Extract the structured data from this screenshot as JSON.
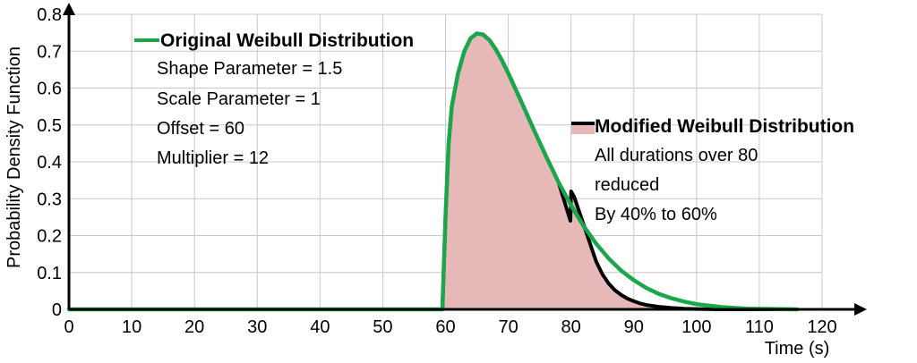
{
  "chart_data": {
    "type": "area",
    "xlabel": "Time (s)",
    "ylabel": "Probability Density Function",
    "xlim": [
      0,
      120
    ],
    "ylim": [
      0,
      0.8
    ],
    "x_ticks": [
      "0",
      "10",
      "20",
      "30",
      "40",
      "50",
      "60",
      "70",
      "80",
      "90",
      "100",
      "110",
      "120"
    ],
    "y_ticks": [
      "0",
      "0.1",
      "0.2",
      "0.3",
      "0.4",
      "0.5",
      "0.6",
      "0.7",
      "0.8"
    ],
    "grid": true,
    "series": [
      {
        "name": "Original Weibull Distribution",
        "color": "#1aa64a",
        "style": "line",
        "x": [
          0,
          59.5,
          60,
          60.5,
          61,
          62,
          63,
          64,
          65,
          66,
          67,
          68,
          69,
          70,
          72,
          74,
          76,
          78,
          80,
          82,
          84,
          86,
          88,
          90,
          92,
          94,
          96,
          98,
          100,
          104,
          108,
          112,
          116
        ],
        "y": [
          0,
          0,
          0.25,
          0.45,
          0.55,
          0.64,
          0.7,
          0.735,
          0.748,
          0.745,
          0.73,
          0.705,
          0.675,
          0.64,
          0.566,
          0.49,
          0.416,
          0.345,
          0.282,
          0.226,
          0.178,
          0.138,
          0.105,
          0.079,
          0.058,
          0.042,
          0.03,
          0.021,
          0.014,
          0.006,
          0.002,
          0.001,
          0
        ]
      },
      {
        "name": "Modified Weibull Distribution",
        "color": "#000000",
        "fill": "#e6b8b8",
        "style": "line+fill",
        "x": [
          0,
          59.5,
          60,
          60.5,
          61,
          62,
          63,
          64,
          65,
          66,
          67,
          68,
          69,
          70,
          72,
          74,
          76,
          78,
          79.9,
          80,
          80.5,
          81,
          82,
          83,
          84,
          85,
          86,
          87,
          88,
          89,
          90,
          91,
          92,
          94,
          96,
          98,
          100,
          104,
          116
        ],
        "y": [
          0,
          0,
          0.25,
          0.45,
          0.55,
          0.64,
          0.7,
          0.735,
          0.748,
          0.745,
          0.73,
          0.705,
          0.675,
          0.64,
          0.566,
          0.49,
          0.416,
          0.345,
          0.24,
          0.32,
          0.305,
          0.28,
          0.23,
          0.18,
          0.13,
          0.095,
          0.07,
          0.052,
          0.039,
          0.029,
          0.022,
          0.016,
          0.012,
          0.007,
          0.004,
          0.002,
          0.001,
          0,
          0
        ]
      }
    ],
    "annotations": {
      "original": {
        "title": "Original Weibull Distribution",
        "lines": [
          "Shape Parameter = 1.5",
          "Scale Parameter = 1",
          "Offset = 60",
          "Multiplier = 12"
        ]
      },
      "modified": {
        "title": "Modified Weibull Distribution",
        "lines": [
          "All durations over 80",
          "reduced",
          "By 40% to 60%"
        ]
      }
    }
  }
}
